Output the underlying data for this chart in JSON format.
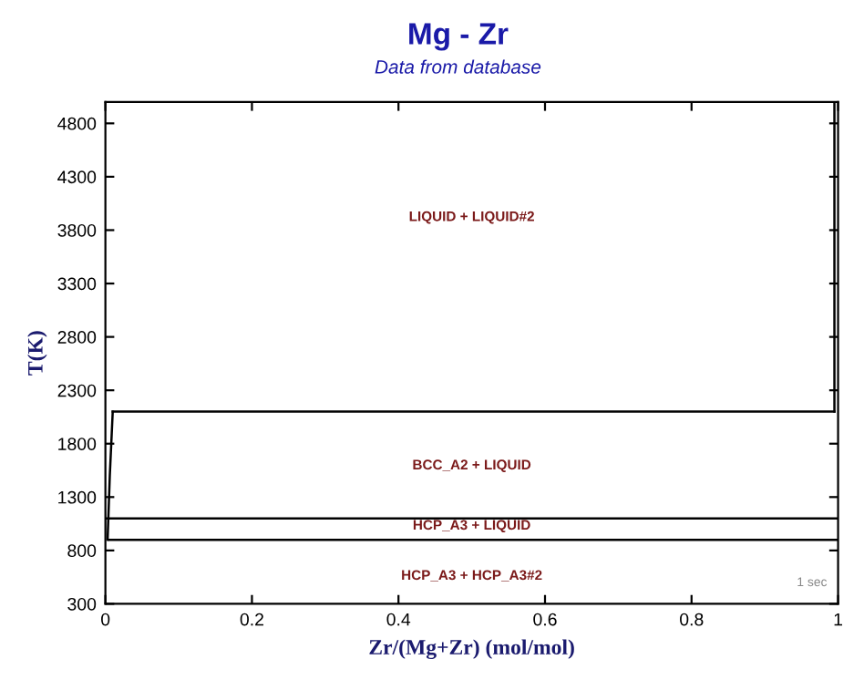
{
  "chart_data": {
    "type": "line",
    "title": "Mg - Zr",
    "subtitle": "Data from database",
    "xlabel": "Zr/(Mg+Zr) (mol/mol)",
    "ylabel": "T(K)",
    "xlim": [
      0,
      1
    ],
    "ylim": [
      300,
      5000
    ],
    "xticks": [
      0,
      0.2,
      0.4,
      0.6,
      0.8,
      1
    ],
    "yticks": [
      300,
      800,
      1300,
      1800,
      2300,
      2800,
      3300,
      3800,
      4300,
      4800
    ],
    "series": [
      {
        "color": "#000000",
        "x": [
          0.01,
          0.995
        ],
        "values": [
          2100,
          2100
        ]
      },
      {
        "color": "#000000",
        "x": [
          0,
          1
        ],
        "values": [
          1100,
          1100
        ]
      },
      {
        "color": "#000000",
        "x": [
          0.005,
          1
        ],
        "values": [
          900,
          900
        ]
      },
      {
        "color": "#000000",
        "x": [
          0.995,
          0.995
        ],
        "values": [
          2100,
          5000
        ]
      },
      {
        "color": "#000000",
        "x": [
          0.003,
          0.006,
          0.01
        ],
        "values": [
          900,
          1500,
          2100
        ]
      }
    ],
    "annotations": [
      "LIQUID + LIQUID#2",
      "BCC_A2 + LIQUID",
      "HCP_A3 + LIQUID",
      "HCP_A3 + HCP_A3#2",
      "1 sec"
    ],
    "grid": false,
    "legend": false,
    "marker": "none",
    "line_style": "solid"
  }
}
